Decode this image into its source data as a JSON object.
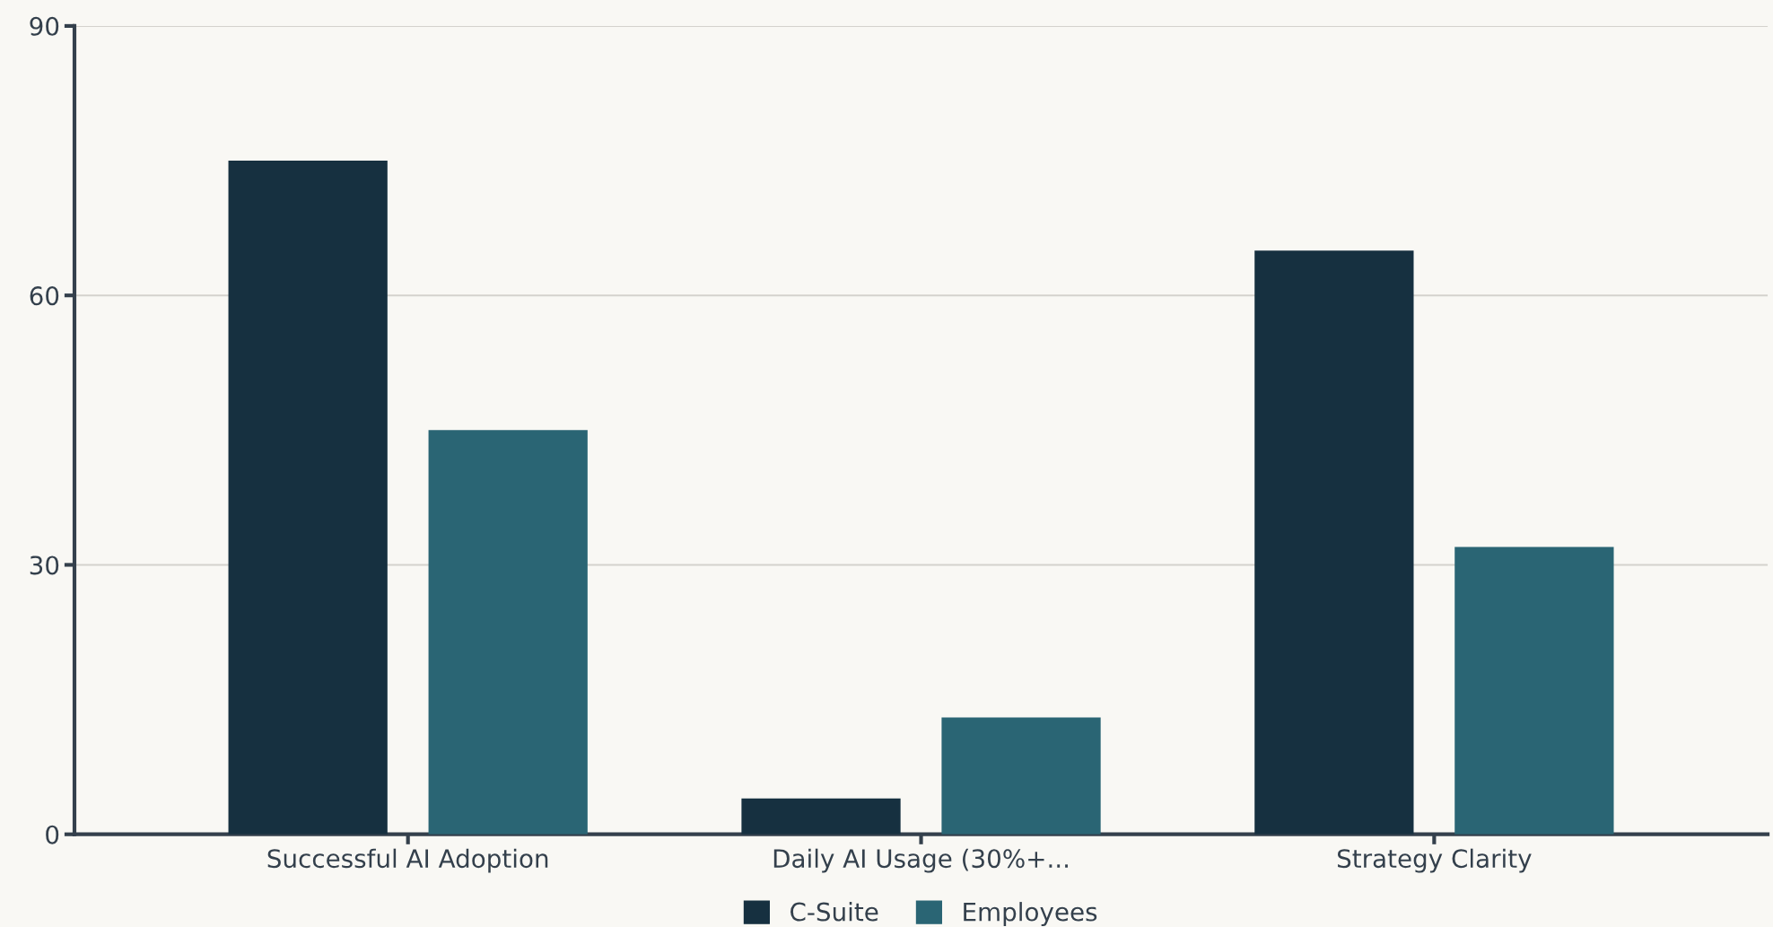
{
  "chart_data": {
    "type": "bar",
    "categories": [
      "Successful AI Adoption",
      "Daily AI Usage (30%+...",
      "Strategy Clarity"
    ],
    "series": [
      {
        "name": "C-Suite",
        "color": "#163040",
        "values": [
          75,
          4,
          65
        ]
      },
      {
        "name": "Employees",
        "color": "#2a6574",
        "values": [
          45,
          13,
          32
        ]
      }
    ],
    "ylim": [
      0,
      90
    ],
    "yticks": [
      0,
      30,
      60,
      90
    ],
    "grid": "y",
    "legend": "bottom"
  }
}
